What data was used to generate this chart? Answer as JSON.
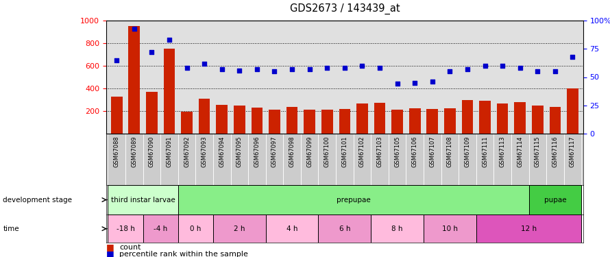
{
  "title": "GDS2673 / 143439_at",
  "samples": [
    "GSM67088",
    "GSM67089",
    "GSM67090",
    "GSM67091",
    "GSM67092",
    "GSM67093",
    "GSM67094",
    "GSM67095",
    "GSM67096",
    "GSM67097",
    "GSM67098",
    "GSM67099",
    "GSM67100",
    "GSM67101",
    "GSM67102",
    "GSM67103",
    "GSM67105",
    "GSM67106",
    "GSM67107",
    "GSM67108",
    "GSM67109",
    "GSM67111",
    "GSM67113",
    "GSM67114",
    "GSM67115",
    "GSM67116",
    "GSM67117"
  ],
  "count_values": [
    330,
    950,
    370,
    750,
    195,
    310,
    255,
    250,
    230,
    215,
    235,
    215,
    210,
    220,
    265,
    270,
    215,
    225,
    220,
    225,
    295,
    290,
    265,
    280,
    250,
    235,
    400
  ],
  "percentile_values": [
    65,
    93,
    72,
    83,
    58,
    62,
    57,
    56,
    57,
    55,
    57,
    57,
    58,
    58,
    60,
    58,
    44,
    45,
    46,
    55,
    57,
    60,
    60,
    58,
    55,
    55,
    68
  ],
  "bar_color": "#cc2200",
  "dot_color": "#0000cc",
  "ylim_left": [
    0,
    1000
  ],
  "ylim_right": [
    0,
    100
  ],
  "yticks_left": [
    200,
    400,
    600,
    800,
    1000
  ],
  "yticks_right": [
    0,
    25,
    50,
    75,
    100
  ],
  "ytick_labels_right": [
    "0",
    "25",
    "50",
    "75",
    "100%"
  ],
  "grid_values": [
    200,
    400,
    600,
    800
  ],
  "stage_spans": [
    {
      "start": 0,
      "end": 4,
      "color": "#ccffcc",
      "label": "third instar larvae"
    },
    {
      "start": 4,
      "end": 24,
      "color": "#88ee88",
      "label": "prepupae"
    },
    {
      "start": 24,
      "end": 27,
      "color": "#44cc44",
      "label": "pupae"
    }
  ],
  "time_spans": [
    {
      "start": 0,
      "end": 2,
      "color": "#ffbbdd",
      "label": "-18 h"
    },
    {
      "start": 2,
      "end": 4,
      "color": "#ee99cc",
      "label": "-4 h"
    },
    {
      "start": 4,
      "end": 6,
      "color": "#ffbbdd",
      "label": "0 h"
    },
    {
      "start": 6,
      "end": 9,
      "color": "#ee99cc",
      "label": "2 h"
    },
    {
      "start": 9,
      "end": 12,
      "color": "#ffbbdd",
      "label": "4 h"
    },
    {
      "start": 12,
      "end": 15,
      "color": "#ee99cc",
      "label": "6 h"
    },
    {
      "start": 15,
      "end": 18,
      "color": "#ffbbdd",
      "label": "8 h"
    },
    {
      "start": 18,
      "end": 21,
      "color": "#ee99cc",
      "label": "10 h"
    },
    {
      "start": 21,
      "end": 27,
      "color": "#dd55bb",
      "label": "12 h"
    }
  ],
  "plot_bg_color": "#e0e0e0",
  "xtick_bg_color": "#cccccc"
}
